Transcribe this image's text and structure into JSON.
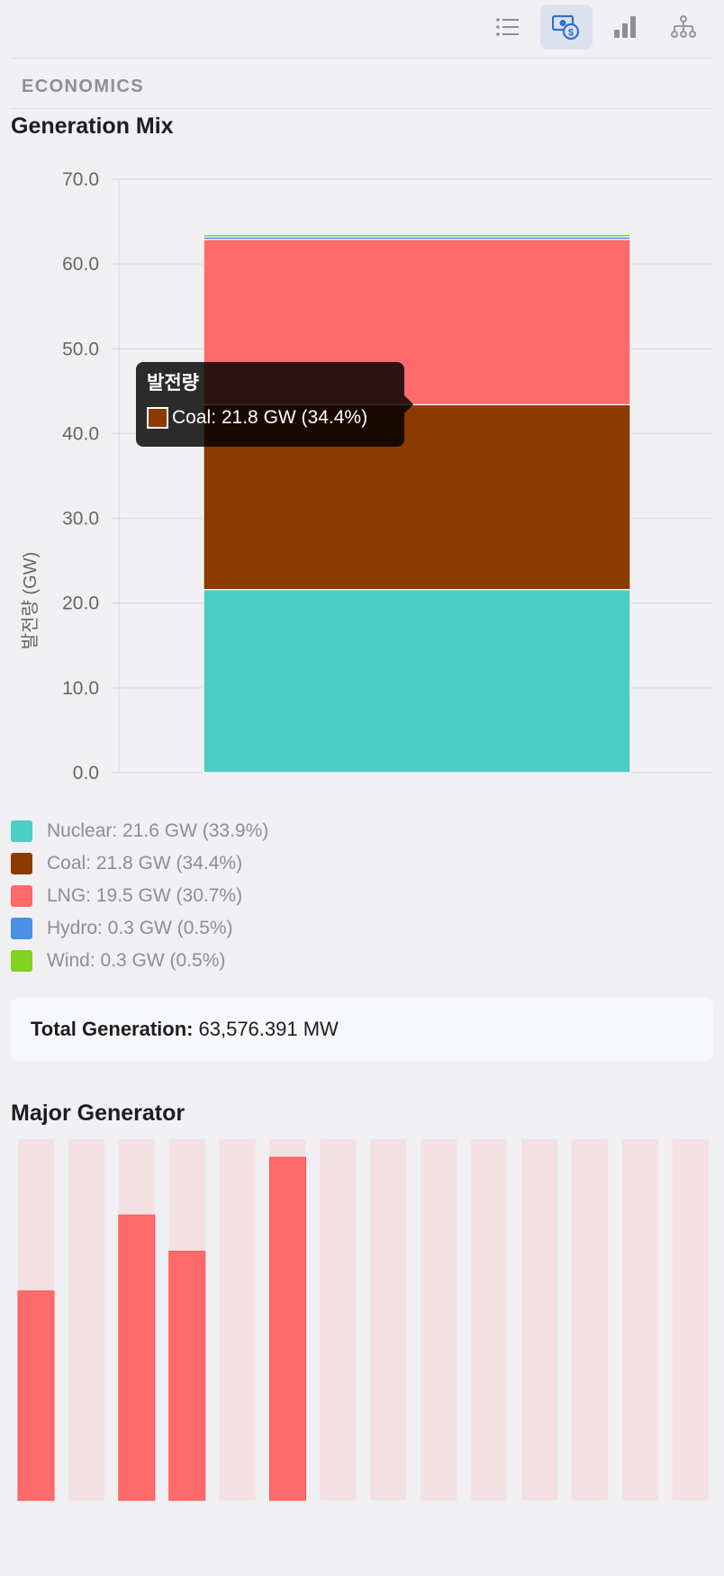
{
  "toolbar": {
    "buttons": [
      {
        "icon": "list-icon",
        "active": false
      },
      {
        "icon": "economics-icon",
        "active": true
      },
      {
        "icon": "bar-chart-icon",
        "active": false
      },
      {
        "icon": "hierarchy-icon",
        "active": false
      }
    ]
  },
  "section": {
    "label": "ECONOMICS"
  },
  "generation_mix": {
    "title": "Generation Mix",
    "tooltip": {
      "title": "발전량",
      "text": "Coal: 21.8 GW (34.4%)",
      "color": "#8b3a00"
    },
    "legend": [
      {
        "text": "Nuclear: 21.6 GW (33.9%)",
        "color": "#4ecdc4"
      },
      {
        "text": "Coal: 21.8 GW (34.4%)",
        "color": "#8b3a00"
      },
      {
        "text": "LNG: 19.5 GW (30.7%)",
        "color": "#ff6b6b"
      },
      {
        "text": "Hydro: 0.3 GW (0.5%)",
        "color": "#4a90e2"
      },
      {
        "text": "Wind: 0.3 GW (0.5%)",
        "color": "#7ed321"
      }
    ]
  },
  "total": {
    "label": "Total Generation:",
    "value": "63,576.391 MW"
  },
  "major_generator": {
    "title": "Major Generator"
  },
  "chart_data": [
    {
      "type": "bar",
      "stacked": true,
      "categories": [
        ""
      ],
      "ylabel": "발전량 (GW)",
      "ylim": [
        0,
        70
      ],
      "yticks": [
        "0.0",
        "10.0",
        "20.0",
        "30.0",
        "40.0",
        "50.0",
        "60.0",
        "70.0"
      ],
      "grid": true,
      "series": [
        {
          "name": "Nuclear",
          "values": [
            21.6
          ],
          "color": "#4ecdc4"
        },
        {
          "name": "Coal",
          "values": [
            21.8
          ],
          "color": "#8b3a00"
        },
        {
          "name": "LNG",
          "values": [
            19.5
          ],
          "color": "#ff6b6b"
        },
        {
          "name": "Hydro",
          "values": [
            0.3
          ],
          "color": "#4a90e2"
        },
        {
          "name": "Wind",
          "values": [
            0.3
          ],
          "color": "#7ed321"
        }
      ]
    },
    {
      "type": "bar",
      "ylim": [
        0,
        1
      ],
      "values": [
        0.58,
        0,
        0.79,
        0.69,
        0,
        0.95,
        0,
        0,
        0,
        0,
        0,
        0,
        0,
        0
      ],
      "color": "#ff6b6b",
      "track_color": "#f2e0e3"
    }
  ]
}
